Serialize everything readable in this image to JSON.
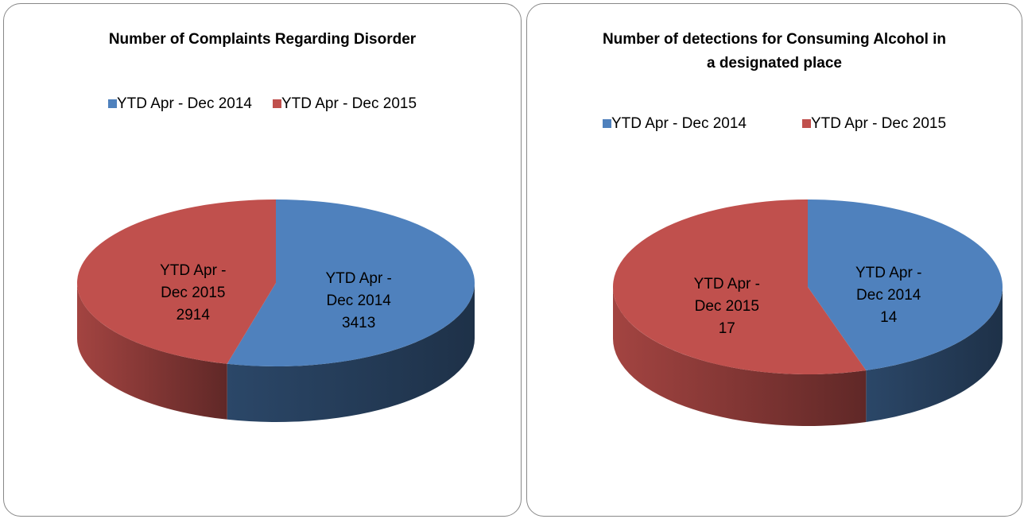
{
  "chart_data": [
    {
      "type": "pie",
      "title": "Number of Complaints Regarding Disorder",
      "categories": [
        "YTD Apr - Dec 2014",
        "YTD Apr - Dec 2015"
      ],
      "values": [
        3413,
        2914
      ],
      "colors": [
        "#4f81bd",
        "#c0504d"
      ],
      "legend": "top"
    },
    {
      "type": "pie",
      "title": "Number of detections for Consuming Alcohol in a designated place",
      "categories": [
        "YTD Apr - Dec 2014",
        "YTD Apr - Dec 2015"
      ],
      "values": [
        14,
        17
      ],
      "colors": [
        "#4f81bd",
        "#c0504d"
      ],
      "legend": "top"
    }
  ]
}
